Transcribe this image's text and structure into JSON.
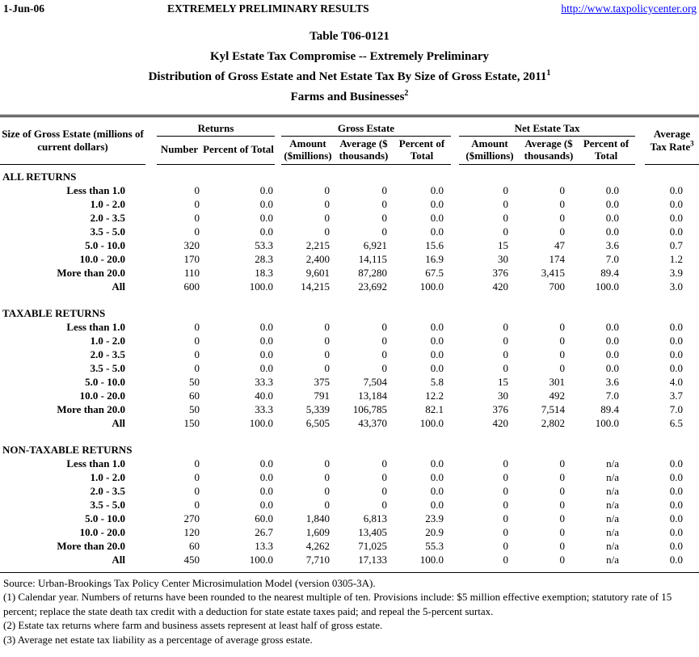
{
  "page": {
    "date": "1-Jun-06",
    "banner": "EXTREMELY PRELIMINARY RESULTS",
    "url": "http://www.taxpolicycenter.org",
    "link_color": "#0000ff",
    "text_color": "#000000",
    "background_color": "#ffffff"
  },
  "title": {
    "line1": "Table T06-0121",
    "line2": "Kyl Estate Tax Compromise -- Extremely Preliminary",
    "line3": "Distribution of Gross Estate and Net Estate Tax By Size of Gross Estate, 2011",
    "line3_sup": "1",
    "line4": "Farms and Businesses",
    "line4_sup": "2"
  },
  "table": {
    "stub_header": "Size of Gross Estate (millions of current dollars)",
    "groups": [
      {
        "label": "Returns",
        "columns": [
          "Number",
          "Percent of Total"
        ]
      },
      {
        "label": "Gross Estate",
        "columns": [
          "Amount ($millions)",
          "Average ($ thousands)",
          "Percent of Total"
        ]
      },
      {
        "label": "Net Estate Tax",
        "columns": [
          "Amount ($millions)",
          "Average ($ thousands)",
          "Percent of Total"
        ]
      }
    ],
    "avg_header": {
      "line1": "Average",
      "line2": "Tax Rate",
      "sup": "3"
    },
    "sections": [
      {
        "label": "ALL RETURNS",
        "rows": [
          {
            "label": "Less than 1.0",
            "values": [
              "0",
              "0.0",
              "0",
              "0",
              "0.0",
              "0",
              "0",
              "0.0",
              "0.0"
            ]
          },
          {
            "label": "1.0 - 2.0",
            "values": [
              "0",
              "0.0",
              "0",
              "0",
              "0.0",
              "0",
              "0",
              "0.0",
              "0.0"
            ]
          },
          {
            "label": "2.0 - 3.5",
            "values": [
              "0",
              "0.0",
              "0",
              "0",
              "0.0",
              "0",
              "0",
              "0.0",
              "0.0"
            ]
          },
          {
            "label": "3.5 - 5.0",
            "values": [
              "0",
              "0.0",
              "0",
              "0",
              "0.0",
              "0",
              "0",
              "0.0",
              "0.0"
            ]
          },
          {
            "label": "5.0 - 10.0",
            "values": [
              "320",
              "53.3",
              "2,215",
              "6,921",
              "15.6",
              "15",
              "47",
              "3.6",
              "0.7"
            ]
          },
          {
            "label": "10.0 - 20.0",
            "values": [
              "170",
              "28.3",
              "2,400",
              "14,115",
              "16.9",
              "30",
              "174",
              "7.0",
              "1.2"
            ]
          },
          {
            "label": "More than 20.0",
            "values": [
              "110",
              "18.3",
              "9,601",
              "87,280",
              "67.5",
              "376",
              "3,415",
              "89.4",
              "3.9"
            ]
          },
          {
            "label": "All",
            "values": [
              "600",
              "100.0",
              "14,215",
              "23,692",
              "100.0",
              "420",
              "700",
              "100.0",
              "3.0"
            ]
          }
        ]
      },
      {
        "label": "TAXABLE RETURNS",
        "rows": [
          {
            "label": "Less than 1.0",
            "values": [
              "0",
              "0.0",
              "0",
              "0",
              "0.0",
              "0",
              "0",
              "0.0",
              "0.0"
            ]
          },
          {
            "label": "1.0 - 2.0",
            "values": [
              "0",
              "0.0",
              "0",
              "0",
              "0.0",
              "0",
              "0",
              "0.0",
              "0.0"
            ]
          },
          {
            "label": "2.0 - 3.5",
            "values": [
              "0",
              "0.0",
              "0",
              "0",
              "0.0",
              "0",
              "0",
              "0.0",
              "0.0"
            ]
          },
          {
            "label": "3.5 - 5.0",
            "values": [
              "0",
              "0.0",
              "0",
              "0",
              "0.0",
              "0",
              "0",
              "0.0",
              "0.0"
            ]
          },
          {
            "label": "5.0 - 10.0",
            "values": [
              "50",
              "33.3",
              "375",
              "7,504",
              "5.8",
              "15",
              "301",
              "3.6",
              "4.0"
            ]
          },
          {
            "label": "10.0 - 20.0",
            "values": [
              "60",
              "40.0",
              "791",
              "13,184",
              "12.2",
              "30",
              "492",
              "7.0",
              "3.7"
            ]
          },
          {
            "label": "More than 20.0",
            "values": [
              "50",
              "33.3",
              "5,339",
              "106,785",
              "82.1",
              "376",
              "7,514",
              "89.4",
              "7.0"
            ]
          },
          {
            "label": "All",
            "values": [
              "150",
              "100.0",
              "6,505",
              "43,370",
              "100.0",
              "420",
              "2,802",
              "100.0",
              "6.5"
            ]
          }
        ]
      },
      {
        "label": "NON-TAXABLE RETURNS",
        "rows": [
          {
            "label": "Less than 1.0",
            "values": [
              "0",
              "0.0",
              "0",
              "0",
              "0.0",
              "0",
              "0",
              "n/a",
              "0.0"
            ]
          },
          {
            "label": "1.0 - 2.0",
            "values": [
              "0",
              "0.0",
              "0",
              "0",
              "0.0",
              "0",
              "0",
              "n/a",
              "0.0"
            ]
          },
          {
            "label": "2.0 - 3.5",
            "values": [
              "0",
              "0.0",
              "0",
              "0",
              "0.0",
              "0",
              "0",
              "n/a",
              "0.0"
            ]
          },
          {
            "label": "3.5 - 5.0",
            "values": [
              "0",
              "0.0",
              "0",
              "0",
              "0.0",
              "0",
              "0",
              "n/a",
              "0.0"
            ]
          },
          {
            "label": "5.0 - 10.0",
            "values": [
              "270",
              "60.0",
              "1,840",
              "6,813",
              "23.9",
              "0",
              "0",
              "n/a",
              "0.0"
            ]
          },
          {
            "label": "10.0 - 20.0",
            "values": [
              "120",
              "26.7",
              "1,609",
              "13,405",
              "20.9",
              "0",
              "0",
              "n/a",
              "0.0"
            ]
          },
          {
            "label": "More than 20.0",
            "values": [
              "60",
              "13.3",
              "4,262",
              "71,025",
              "55.3",
              "0",
              "0",
              "n/a",
              "0.0"
            ]
          },
          {
            "label": "All",
            "values": [
              "450",
              "100.0",
              "7,710",
              "17,133",
              "100.0",
              "0",
              "0",
              "n/a",
              "0.0"
            ]
          }
        ]
      }
    ]
  },
  "notes": {
    "source": "Source: Urban-Brookings Tax Policy Center Microsimulation Model (version 0305-3A).",
    "n1": "(1) Calendar year. Numbers of returns have been rounded to the nearest multiple of ten. Provisions include: $5 million effective exemption;  statutory rate of 15 percent; replace the state death tax credit with a deduction for state estate taxes paid; and repeal the 5-percent surtax.",
    "n2": "(2) Estate tax returns where farm and business assets represent at least half of gross estate.",
    "n3": "(3) Average net estate tax liability as a percentage of average gross estate."
  }
}
